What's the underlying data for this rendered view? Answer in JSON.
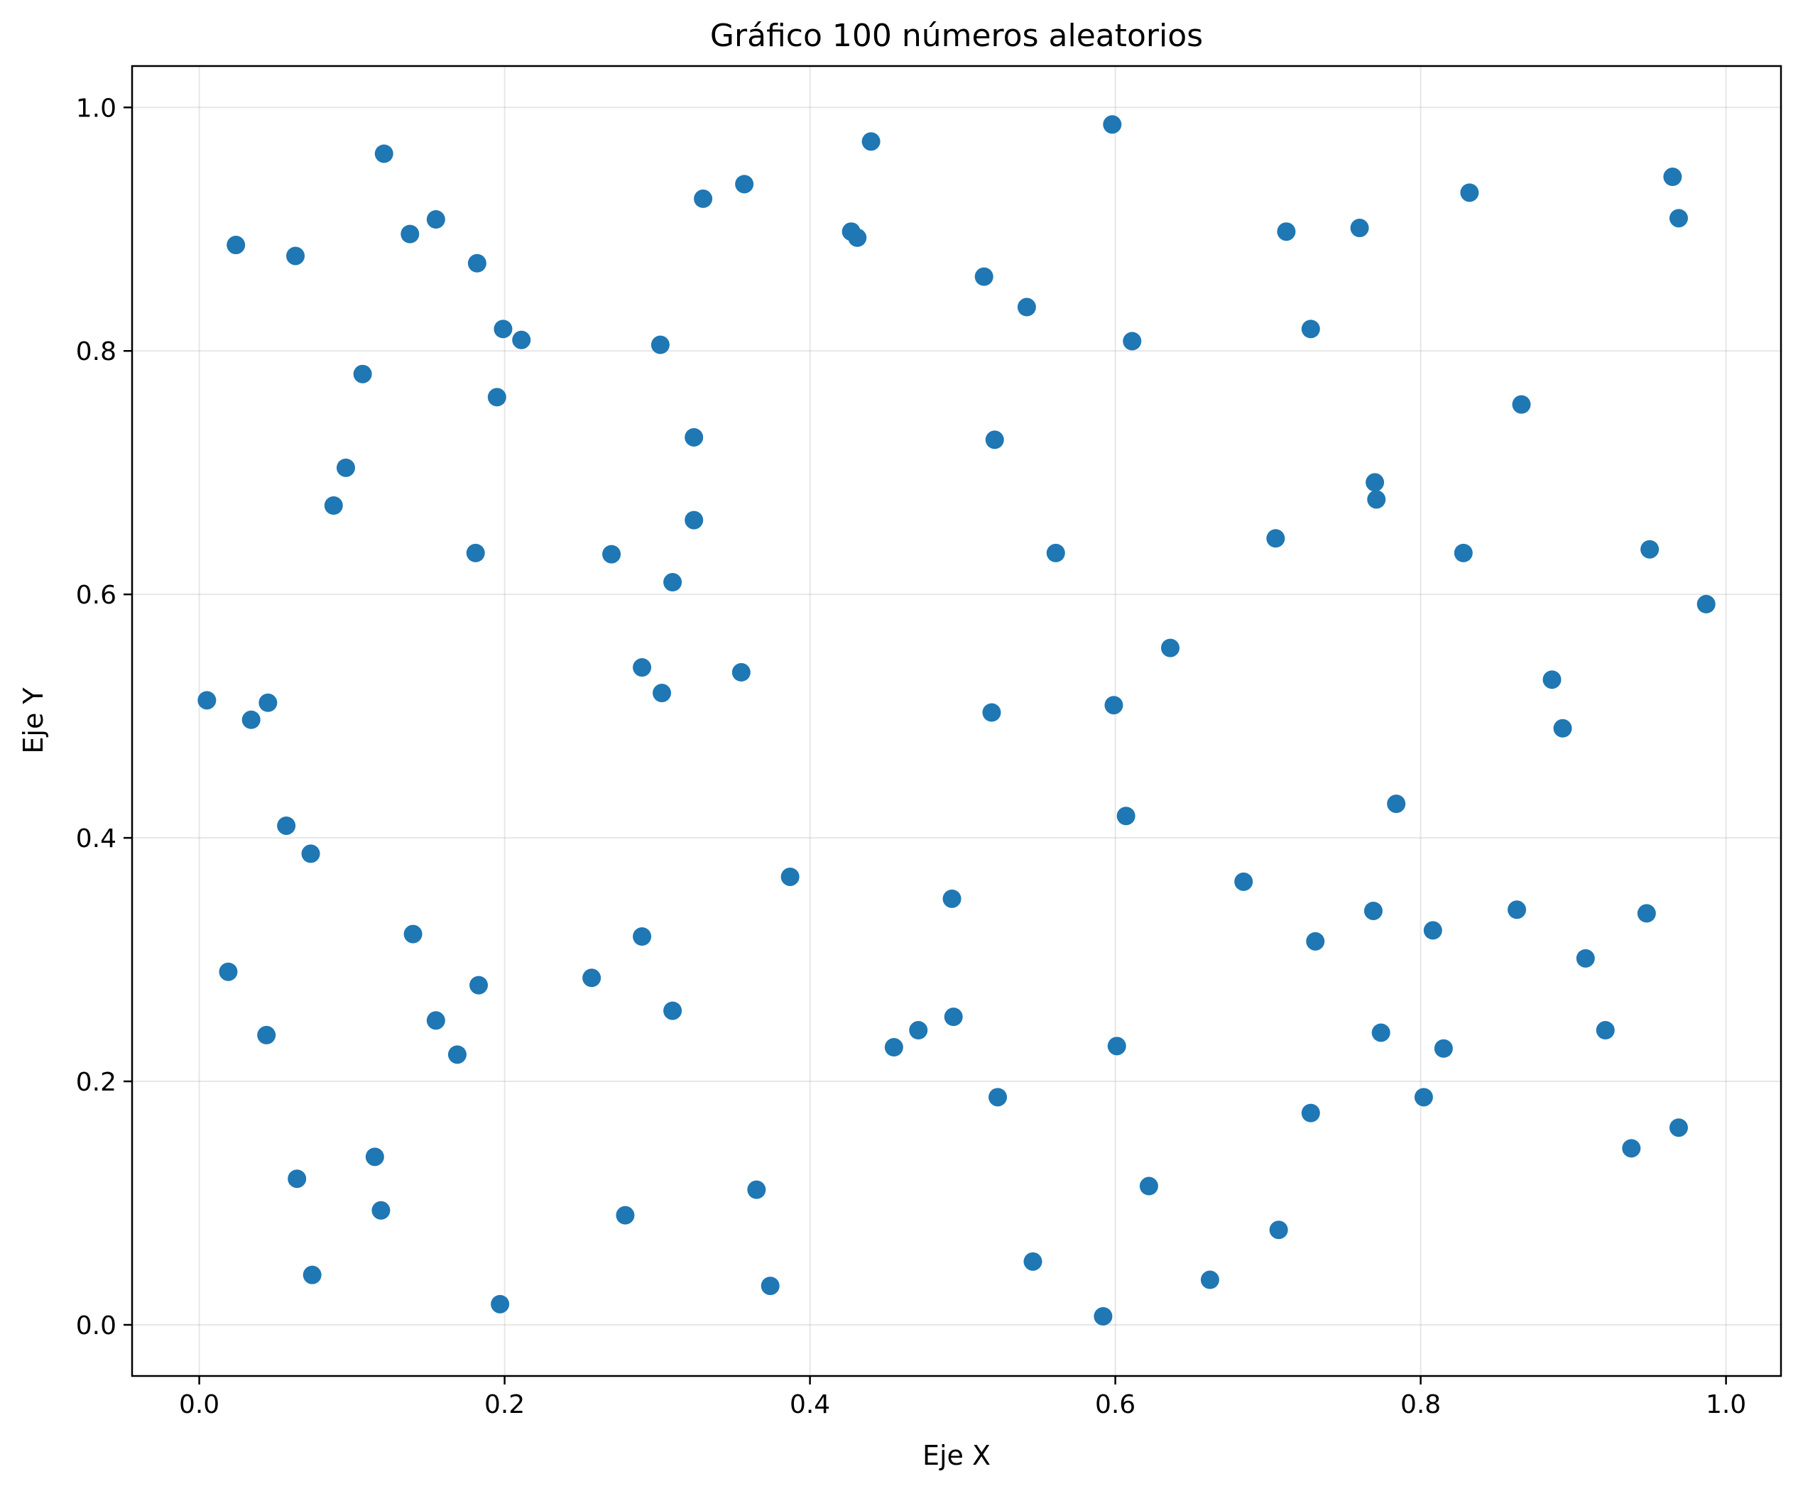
{
  "chart_data": {
    "type": "scatter",
    "title": "Gráfico 100 números aleatorios",
    "xlabel": "Eje X",
    "ylabel": "Eje Y",
    "xlim": [
      -0.044,
      1.036
    ],
    "ylim": [
      -0.042,
      1.034
    ],
    "grid": true,
    "color": "#1f77b4",
    "x_ticks": [
      {
        "value": 0.0,
        "label": "0.0"
      },
      {
        "value": 0.2,
        "label": "0.2"
      },
      {
        "value": 0.4,
        "label": "0.4"
      },
      {
        "value": 0.6,
        "label": "0.6"
      },
      {
        "value": 0.8,
        "label": "0.8"
      },
      {
        "value": 1.0,
        "label": "1.0"
      }
    ],
    "y_ticks": [
      {
        "value": 0.0,
        "label": "0.0"
      },
      {
        "value": 0.2,
        "label": "0.2"
      },
      {
        "value": 0.4,
        "label": "0.4"
      },
      {
        "value": 0.6,
        "label": "0.6"
      },
      {
        "value": 0.8,
        "label": "0.8"
      },
      {
        "value": 1.0,
        "label": "1.0"
      }
    ],
    "points": [
      [
        0.005,
        0.513
      ],
      [
        0.024,
        0.887
      ],
      [
        0.063,
        0.878
      ],
      [
        0.121,
        0.962
      ],
      [
        0.138,
        0.896
      ],
      [
        0.155,
        0.908
      ],
      [
        0.182,
        0.872
      ],
      [
        0.199,
        0.818
      ],
      [
        0.211,
        0.809
      ],
      [
        0.107,
        0.781
      ],
      [
        0.195,
        0.762
      ],
      [
        0.096,
        0.704
      ],
      [
        0.088,
        0.673
      ],
      [
        0.181,
        0.634
      ],
      [
        0.034,
        0.497
      ],
      [
        0.045,
        0.511
      ],
      [
        0.057,
        0.41
      ],
      [
        0.073,
        0.387
      ],
      [
        0.019,
        0.29
      ],
      [
        0.044,
        0.238
      ],
      [
        0.14,
        0.321
      ],
      [
        0.155,
        0.25
      ],
      [
        0.169,
        0.222
      ],
      [
        0.183,
        0.279
      ],
      [
        0.115,
        0.138
      ],
      [
        0.119,
        0.094
      ],
      [
        0.064,
        0.12
      ],
      [
        0.074,
        0.041
      ],
      [
        0.197,
        0.017
      ],
      [
        0.302,
        0.805
      ],
      [
        0.33,
        0.925
      ],
      [
        0.357,
        0.937
      ],
      [
        0.324,
        0.729
      ],
      [
        0.324,
        0.661
      ],
      [
        0.27,
        0.633
      ],
      [
        0.31,
        0.61
      ],
      [
        0.29,
        0.54
      ],
      [
        0.303,
        0.519
      ],
      [
        0.355,
        0.536
      ],
      [
        0.387,
        0.368
      ],
      [
        0.29,
        0.319
      ],
      [
        0.257,
        0.285
      ],
      [
        0.31,
        0.258
      ],
      [
        0.279,
        0.09
      ],
      [
        0.365,
        0.111
      ],
      [
        0.374,
        0.032
      ],
      [
        0.427,
        0.898
      ],
      [
        0.431,
        0.893
      ],
      [
        0.44,
        0.972
      ],
      [
        0.514,
        0.861
      ],
      [
        0.542,
        0.836
      ],
      [
        0.521,
        0.727
      ],
      [
        0.561,
        0.634
      ],
      [
        0.519,
        0.503
      ],
      [
        0.493,
        0.35
      ],
      [
        0.455,
        0.228
      ],
      [
        0.471,
        0.242
      ],
      [
        0.494,
        0.253
      ],
      [
        0.523,
        0.187
      ],
      [
        0.546,
        0.052
      ],
      [
        0.598,
        0.986
      ],
      [
        0.611,
        0.808
      ],
      [
        0.636,
        0.556
      ],
      [
        0.599,
        0.509
      ],
      [
        0.607,
        0.418
      ],
      [
        0.601,
        0.229
      ],
      [
        0.622,
        0.114
      ],
      [
        0.662,
        0.037
      ],
      [
        0.592,
        0.007
      ],
      [
        0.712,
        0.898
      ],
      [
        0.728,
        0.818
      ],
      [
        0.76,
        0.901
      ],
      [
        0.705,
        0.646
      ],
      [
        0.77,
        0.692
      ],
      [
        0.771,
        0.678
      ],
      [
        0.684,
        0.364
      ],
      [
        0.731,
        0.315
      ],
      [
        0.769,
        0.34
      ],
      [
        0.784,
        0.428
      ],
      [
        0.774,
        0.24
      ],
      [
        0.728,
        0.174
      ],
      [
        0.707,
        0.078
      ],
      [
        0.832,
        0.93
      ],
      [
        0.866,
        0.756
      ],
      [
        0.828,
        0.634
      ],
      [
        0.808,
        0.324
      ],
      [
        0.815,
        0.227
      ],
      [
        0.802,
        0.187
      ],
      [
        0.863,
        0.341
      ],
      [
        0.886,
        0.53
      ],
      [
        0.893,
        0.49
      ],
      [
        0.908,
        0.301
      ],
      [
        0.921,
        0.242
      ],
      [
        0.938,
        0.145
      ],
      [
        0.965,
        0.943
      ],
      [
        0.969,
        0.909
      ],
      [
        0.95,
        0.637
      ],
      [
        0.948,
        0.338
      ],
      [
        0.969,
        0.162
      ],
      [
        0.987,
        0.592
      ]
    ]
  }
}
